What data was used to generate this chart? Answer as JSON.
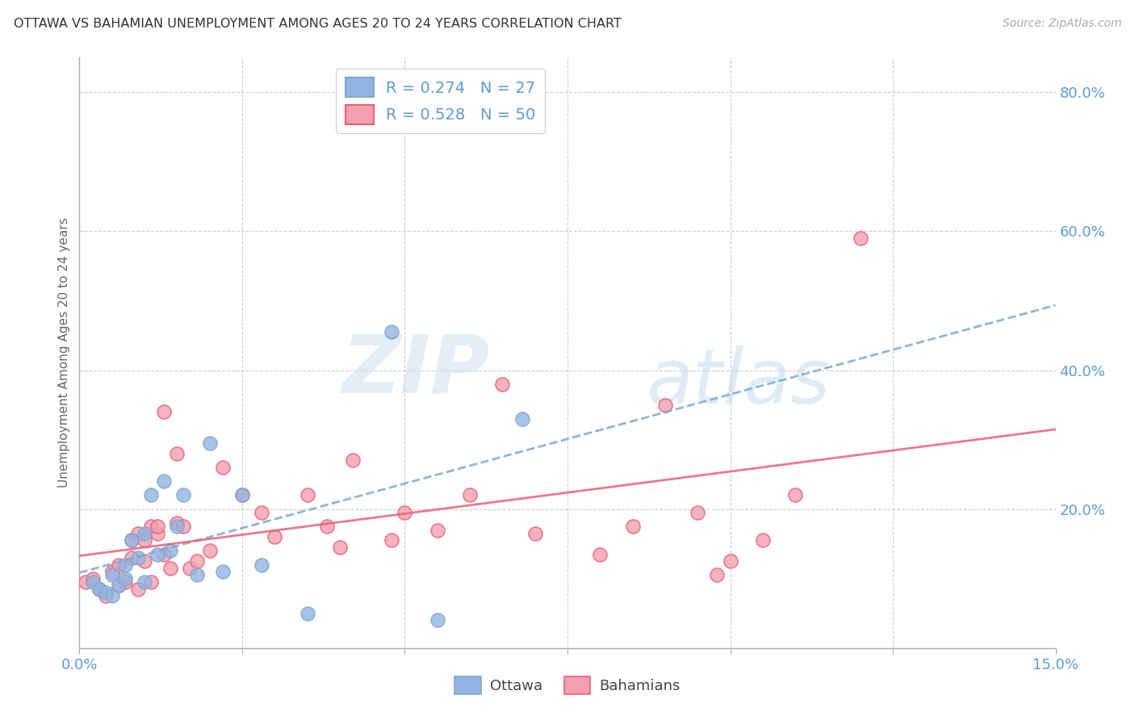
{
  "title": "OTTAWA VS BAHAMIAN UNEMPLOYMENT AMONG AGES 20 TO 24 YEARS CORRELATION CHART",
  "source": "Source: ZipAtlas.com",
  "ylabel": "Unemployment Among Ages 20 to 24 years",
  "xlim": [
    0.0,
    0.15
  ],
  "ylim": [
    0.0,
    0.85
  ],
  "xticks": [
    0.0,
    0.025,
    0.05,
    0.075,
    0.1,
    0.125,
    0.15
  ],
  "yticks_right": [
    0.2,
    0.4,
    0.6,
    0.8
  ],
  "ytick_labels_right": [
    "20.0%",
    "40.0%",
    "60.0%",
    "80.0%"
  ],
  "xtick_labels": [
    "0.0%",
    "",
    "",
    "",
    "",
    "",
    "15.0%"
  ],
  "ottawa_color": "#92b4e3",
  "bahamians_color": "#f4a0b0",
  "trendline_ottawa_color": "#7aaad0",
  "trendline_bahamians_color": "#e8607a",
  "ottawa_scatter_x": [
    0.002,
    0.003,
    0.004,
    0.005,
    0.005,
    0.006,
    0.007,
    0.007,
    0.008,
    0.009,
    0.01,
    0.01,
    0.011,
    0.012,
    0.013,
    0.014,
    0.015,
    0.016,
    0.018,
    0.02,
    0.022,
    0.025,
    0.028,
    0.035,
    0.048,
    0.055,
    0.068
  ],
  "ottawa_scatter_y": [
    0.095,
    0.085,
    0.08,
    0.105,
    0.075,
    0.09,
    0.1,
    0.12,
    0.155,
    0.13,
    0.165,
    0.095,
    0.22,
    0.135,
    0.24,
    0.14,
    0.175,
    0.22,
    0.105,
    0.295,
    0.11,
    0.22,
    0.12,
    0.05,
    0.455,
    0.04,
    0.33
  ],
  "bahamians_scatter_x": [
    0.001,
    0.002,
    0.003,
    0.004,
    0.005,
    0.006,
    0.006,
    0.007,
    0.008,
    0.008,
    0.009,
    0.009,
    0.01,
    0.01,
    0.011,
    0.011,
    0.012,
    0.012,
    0.013,
    0.013,
    0.014,
    0.015,
    0.015,
    0.016,
    0.017,
    0.018,
    0.02,
    0.022,
    0.025,
    0.028,
    0.03,
    0.035,
    0.038,
    0.04,
    0.042,
    0.048,
    0.05,
    0.055,
    0.06,
    0.065,
    0.07,
    0.08,
    0.085,
    0.09,
    0.095,
    0.098,
    0.1,
    0.105,
    0.11,
    0.12
  ],
  "bahamians_scatter_y": [
    0.095,
    0.1,
    0.085,
    0.075,
    0.11,
    0.09,
    0.12,
    0.095,
    0.13,
    0.155,
    0.085,
    0.165,
    0.125,
    0.155,
    0.175,
    0.095,
    0.165,
    0.175,
    0.135,
    0.34,
    0.115,
    0.18,
    0.28,
    0.175,
    0.115,
    0.125,
    0.14,
    0.26,
    0.22,
    0.195,
    0.16,
    0.22,
    0.175,
    0.145,
    0.27,
    0.155,
    0.195,
    0.17,
    0.22,
    0.38,
    0.165,
    0.135,
    0.175,
    0.35,
    0.195,
    0.105,
    0.125,
    0.155,
    0.22,
    0.59
  ],
  "watermark_zip": "ZIP",
  "watermark_atlas": "atlas",
  "legend_ottawa_r": "R = 0.274",
  "legend_ottawa_n": "N = 27",
  "legend_bahamians_r": "R = 0.528",
  "legend_bahamians_n": "N = 50"
}
